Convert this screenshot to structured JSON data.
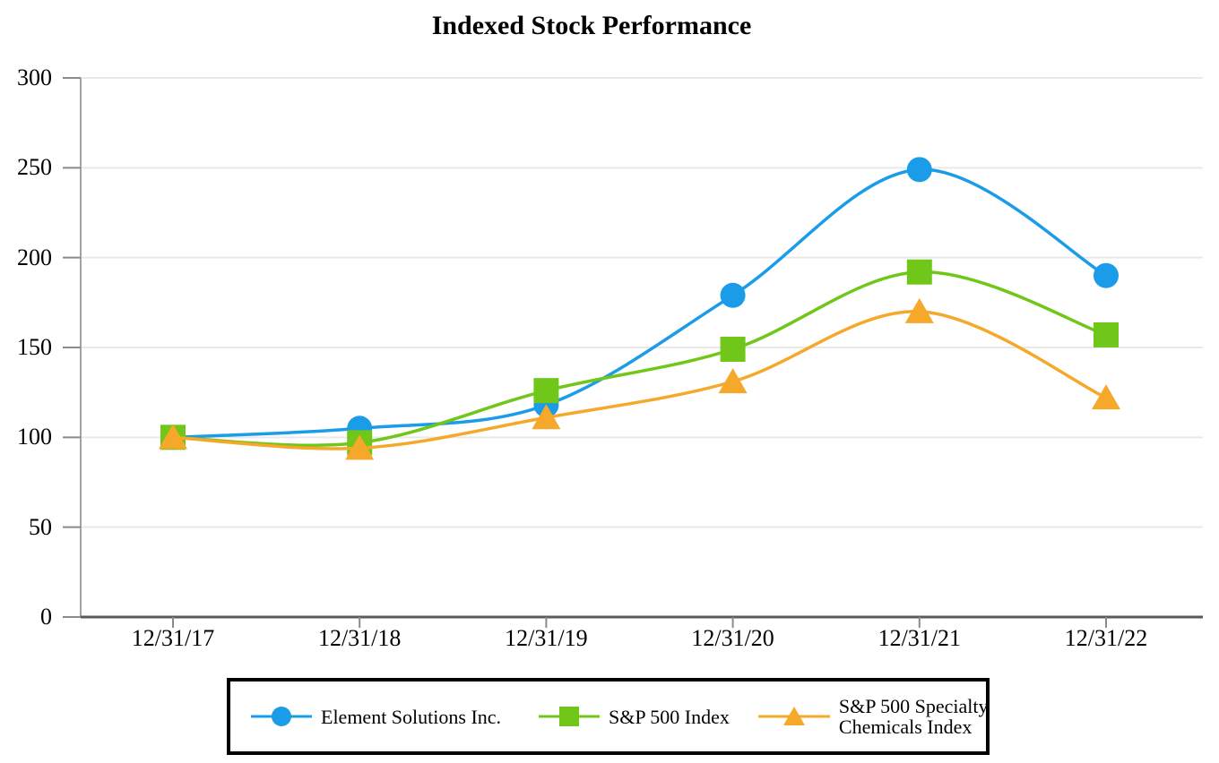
{
  "title": "Indexed Stock Performance",
  "chart_data": {
    "type": "line",
    "line_style": "smooth",
    "x_categories": [
      "12/31/17",
      "12/31/18",
      "12/31/19",
      "12/31/20",
      "12/31/21",
      "12/31/22"
    ],
    "series": [
      {
        "name": "Element Solutions Inc.",
        "marker": "circle",
        "color": "#1A9CE8",
        "values": [
          100,
          105,
          118,
          179,
          249,
          190
        ]
      },
      {
        "name": "S&P 500 Index",
        "marker": "square",
        "color": "#70C619",
        "values": [
          100,
          97,
          126,
          149,
          192,
          157
        ]
      },
      {
        "name": "S&P 500 Specialty Chemicals Index",
        "marker": "triangle",
        "color": "#F5A829",
        "values": [
          100,
          94,
          111,
          131,
          170,
          122
        ]
      }
    ],
    "ylim": [
      0,
      300
    ],
    "ytick_step": 50,
    "grid": "horizontal",
    "legend_position": "bottom"
  },
  "legend": {
    "entries": [
      {
        "label_lines": [
          "Element Solutions Inc."
        ]
      },
      {
        "label_lines": [
          "S&P 500 Index"
        ]
      },
      {
        "label_lines": [
          "S&P 500 Specialty",
          "Chemicals Index"
        ]
      }
    ]
  },
  "colors": {
    "grid": "#E9E9E9",
    "axis_bottom": "#5A5A5A",
    "axis_vertical": "#A3A3A3",
    "tick": "#8A8A8A",
    "legend_border": "#000000",
    "background": "#FFFFFF"
  }
}
